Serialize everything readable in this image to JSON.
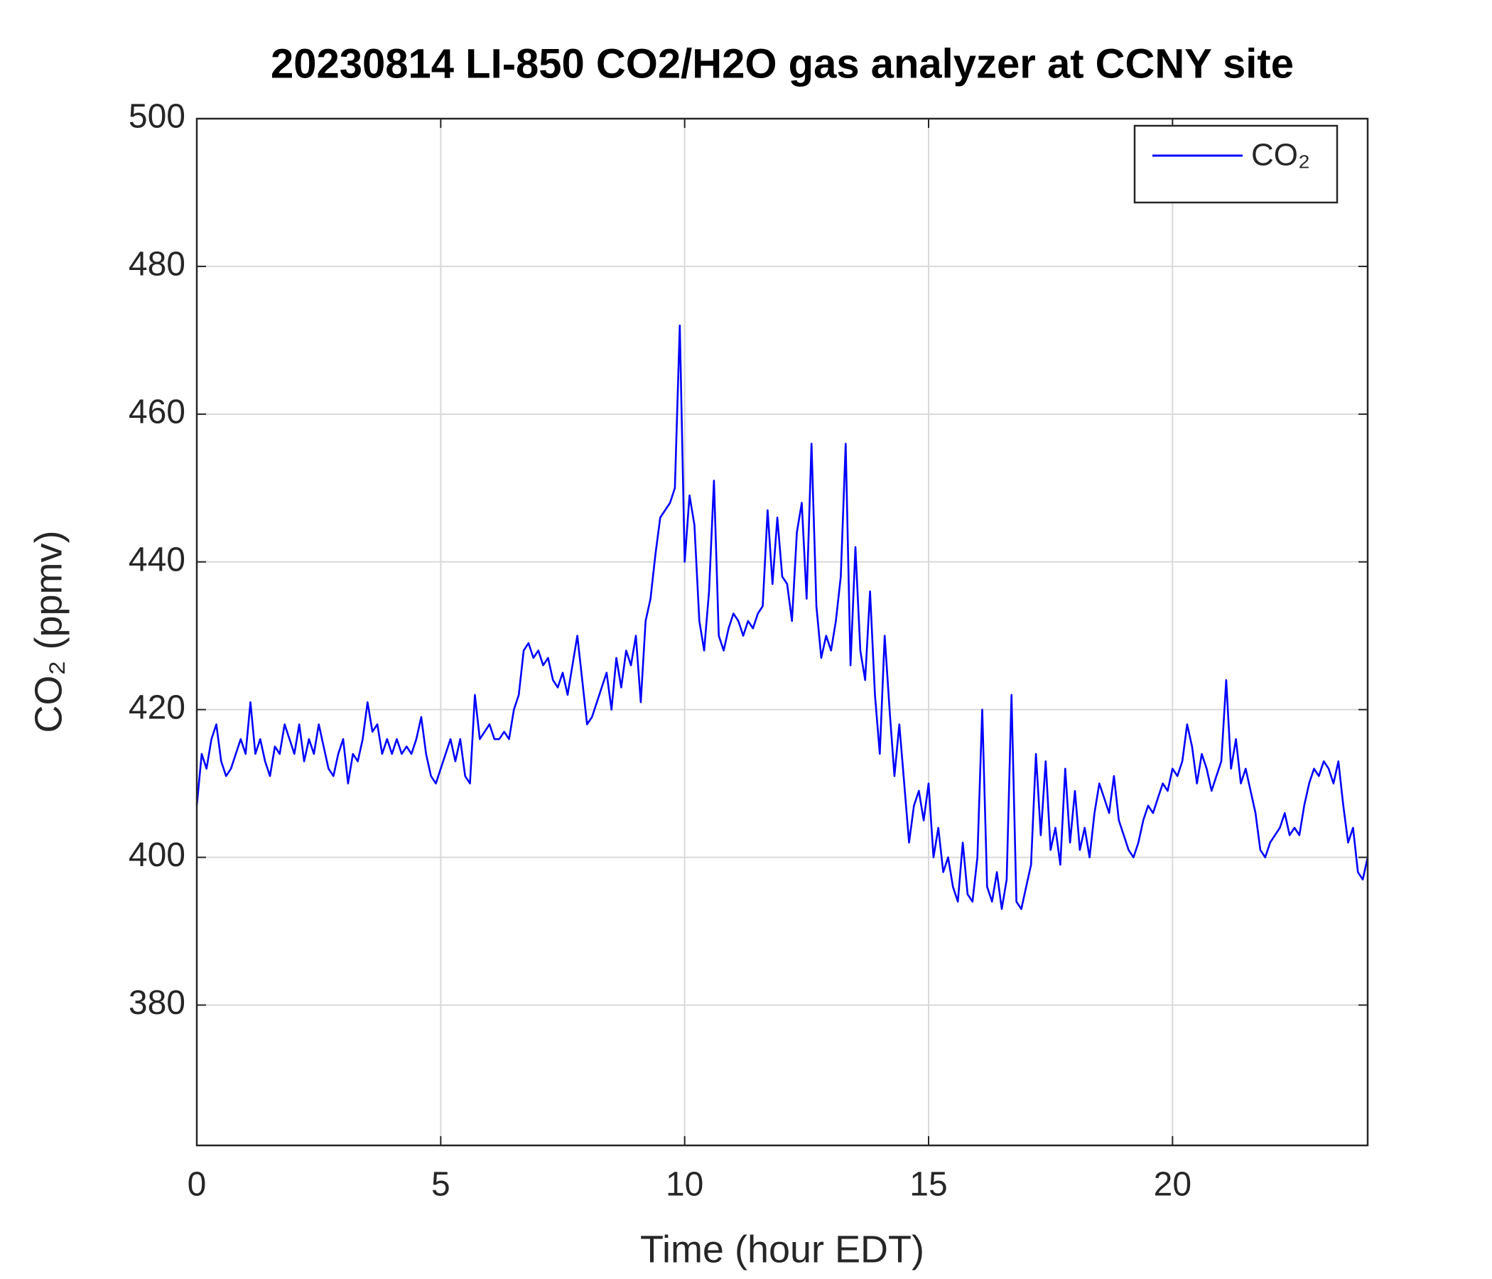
{
  "chart_data": {
    "type": "line",
    "title": "20230814 LI-850 CO2/H2O gas analyzer at CCNY site",
    "xlabel": "Time (hour EDT)",
    "ylabel": "CO₂ (ppmv)",
    "xlim": [
      0,
      24
    ],
    "ylim": [
      361,
      500
    ],
    "xticks": [
      0,
      5,
      10,
      15,
      20
    ],
    "yticks": [
      380,
      400,
      420,
      440,
      460,
      480,
      500
    ],
    "grid": true,
    "legend": "upper right",
    "x": [
      0,
      0.1,
      0.2,
      0.3,
      0.4,
      0.5,
      0.6,
      0.7,
      0.8,
      0.9,
      1,
      1.1,
      1.2,
      1.3,
      1.4,
      1.5,
      1.6,
      1.7,
      1.8,
      1.9,
      2,
      2.1,
      2.2,
      2.3,
      2.4,
      2.5,
      2.6,
      2.7,
      2.8,
      2.9,
      3,
      3.1,
      3.2,
      3.3,
      3.4,
      3.5,
      3.6,
      3.7,
      3.8,
      3.9,
      4,
      4.1,
      4.2,
      4.3,
      4.4,
      4.5,
      4.6,
      4.7,
      4.8,
      4.9,
      5,
      5.1,
      5.2,
      5.3,
      5.4,
      5.5,
      5.6,
      5.7,
      5.8,
      5.9,
      6,
      6.1,
      6.2,
      6.3,
      6.4,
      6.5,
      6.6,
      6.7,
      6.8,
      6.9,
      7,
      7.1,
      7.2,
      7.3,
      7.4,
      7.5,
      7.6,
      7.7,
      7.8,
      7.9,
      8,
      8.1,
      8.2,
      8.3,
      8.4,
      8.5,
      8.6,
      8.7,
      8.8,
      8.9,
      9,
      9.1,
      9.2,
      9.3,
      9.4,
      9.5,
      9.6,
      9.7,
      9.8,
      9.9,
      10,
      10.1,
      10.2,
      10.3,
      10.4,
      10.5,
      10.6,
      10.7,
      10.8,
      10.9,
      11,
      11.1,
      11.2,
      11.3,
      11.4,
      11.5,
      11.6,
      11.7,
      11.8,
      11.9,
      12,
      12.1,
      12.2,
      12.3,
      12.4,
      12.5,
      12.6,
      12.7,
      12.8,
      12.9,
      13,
      13.1,
      13.2,
      13.3,
      13.4,
      13.5,
      13.6,
      13.7,
      13.8,
      13.9,
      14,
      14.1,
      14.2,
      14.3,
      14.4,
      14.5,
      14.6,
      14.7,
      14.8,
      14.9,
      15,
      15.1,
      15.2,
      15.3,
      15.4,
      15.5,
      15.6,
      15.7,
      15.8,
      15.9,
      16,
      16.1,
      16.2,
      16.3,
      16.4,
      16.5,
      16.6,
      16.7,
      16.8,
      16.9,
      17,
      17.1,
      17.2,
      17.3,
      17.4,
      17.5,
      17.6,
      17.7,
      17.8,
      17.9,
      18,
      18.1,
      18.2,
      18.3,
      18.4,
      18.5,
      18.6,
      18.7,
      18.8,
      18.9,
      19,
      19.1,
      19.2,
      19.3,
      19.4,
      19.5,
      19.6,
      19.7,
      19.8,
      19.9,
      20,
      20.1,
      20.2,
      20.3,
      20.4,
      20.5,
      20.6,
      20.7,
      20.8,
      20.9,
      21,
      21.1,
      21.2,
      21.3,
      21.4,
      21.5,
      21.6,
      21.7,
      21.8,
      21.9,
      22,
      22.1,
      22.2,
      22.3,
      22.4,
      22.5,
      22.6,
      22.7,
      22.8,
      22.9,
      23,
      23.1,
      23.2,
      23.3,
      23.4,
      23.5,
      23.6,
      23.7,
      23.8,
      23.9,
      24
    ],
    "series": [
      {
        "name": "CO₂",
        "color": "#0000ff",
        "values": [
          407,
          414,
          412,
          416,
          418,
          413,
          411,
          412,
          414,
          416,
          414,
          421,
          414,
          416,
          413,
          411,
          415,
          414,
          418,
          416,
          414,
          418,
          413,
          416,
          414,
          418,
          415,
          412,
          411,
          414,
          416,
          410,
          414,
          413,
          416,
          421,
          417,
          418,
          414,
          416,
          414,
          416,
          414,
          415,
          414,
          416,
          419,
          414,
          411,
          410,
          412,
          414,
          416,
          413,
          416,
          411,
          410,
          422,
          416,
          417,
          418,
          416,
          416,
          417,
          416,
          420,
          422,
          428,
          429,
          427,
          428,
          426,
          427,
          424,
          423,
          425,
          422,
          426,
          430,
          424,
          418,
          419,
          421,
          423,
          425,
          420,
          427,
          423,
          428,
          426,
          430,
          421,
          432,
          435,
          441,
          446,
          447,
          448,
          450,
          472,
          440,
          449,
          445,
          432,
          428,
          436,
          451,
          430,
          428,
          431,
          433,
          432,
          430,
          432,
          431,
          433,
          434,
          447,
          437,
          446,
          438,
          437,
          432,
          444,
          448,
          435,
          456,
          434,
          427,
          430,
          428,
          432,
          438,
          456,
          426,
          442,
          428,
          424,
          436,
          422,
          414,
          430,
          420,
          411,
          418,
          410,
          402,
          407,
          409,
          405,
          410,
          400,
          404,
          398,
          400,
          396,
          394,
          402,
          395,
          394,
          400,
          420,
          396,
          394,
          398,
          393,
          397,
          422,
          394,
          393,
          396,
          399,
          414,
          403,
          413,
          401,
          404,
          399,
          412,
          402,
          409,
          401,
          404,
          400,
          406,
          410,
          408,
          406,
          411,
          405,
          403,
          401,
          400,
          402,
          405,
          407,
          406,
          408,
          410,
          409,
          412,
          411,
          413,
          418,
          415,
          410,
          414,
          412,
          409,
          411,
          413,
          424,
          412,
          416,
          410,
          412,
          409,
          406,
          401,
          400,
          402,
          403,
          404,
          406,
          403,
          404,
          403,
          407,
          410,
          412,
          411,
          413,
          412,
          410,
          413,
          407,
          402,
          404,
          398,
          397,
          400
        ]
      }
    ]
  }
}
